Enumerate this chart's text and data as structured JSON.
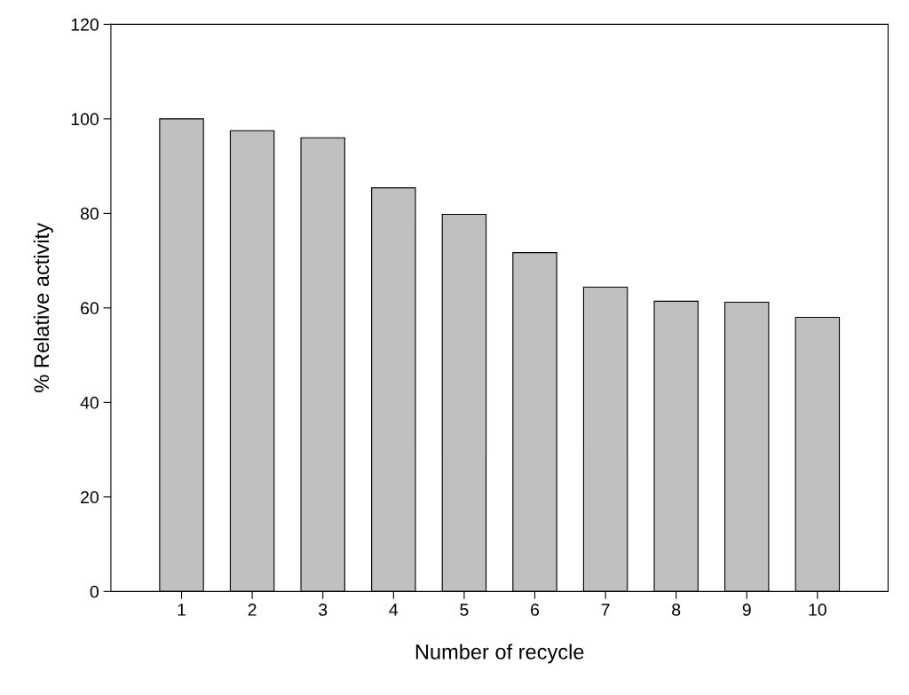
{
  "chart_data": {
    "type": "bar",
    "xlabel": "Number of recycle",
    "ylabel": "% Relative activity",
    "categories": [
      "1",
      "2",
      "3",
      "4",
      "5",
      "6",
      "7",
      "8",
      "9",
      "10"
    ],
    "series": [
      {
        "color": "#c0c0c0",
        "values": [
          100,
          97.5,
          96,
          85.4,
          79.8,
          71.7,
          64.4,
          61.4,
          61.2,
          58
        ]
      }
    ],
    "ylim": [
      0,
      120
    ],
    "yticks": [
      0,
      20,
      40,
      60,
      80,
      100,
      120
    ],
    "grid": false,
    "legend": false
  }
}
